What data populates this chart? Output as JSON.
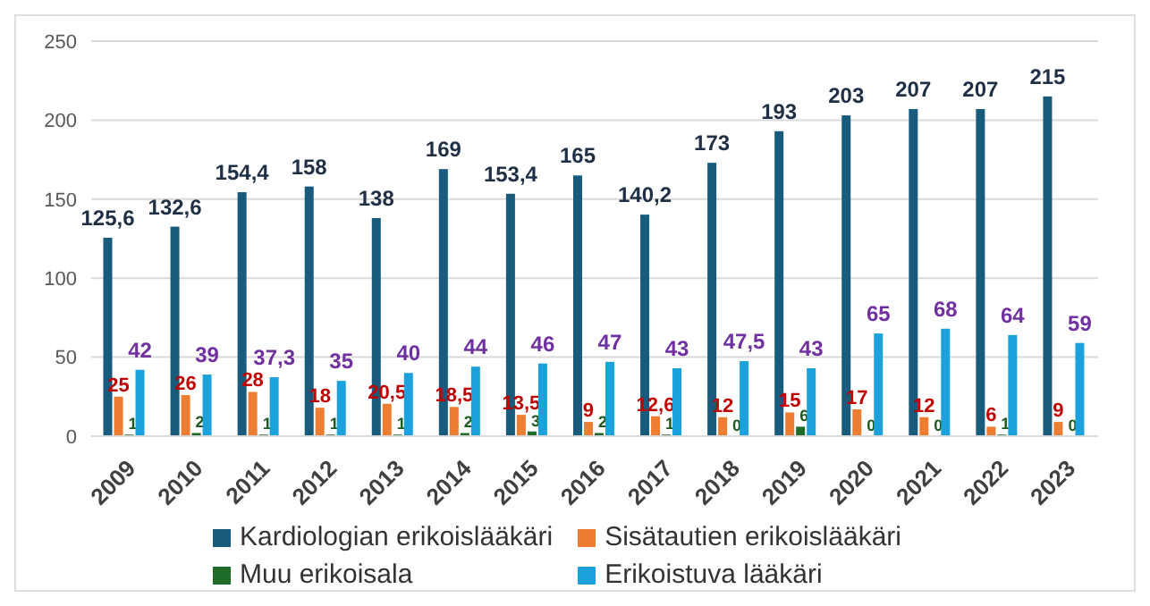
{
  "chart_data": {
    "type": "bar",
    "categories": [
      "2009",
      "2010",
      "2011",
      "2012",
      "2013",
      "2014",
      "2015",
      "2016",
      "2017",
      "2018",
      "2019",
      "2020",
      "2021",
      "2022",
      "2023"
    ],
    "series": [
      {
        "name": "Kardiologian erikoislääkäri",
        "color": "#185b7c",
        "values": [
          125.6,
          132.6,
          154.4,
          158,
          138,
          169,
          153.4,
          165,
          140.2,
          173,
          193,
          203,
          207,
          207,
          215
        ],
        "value_labels": [
          "125,6",
          "132,6",
          "154,4",
          "158",
          "138",
          "169",
          "153,4",
          "165",
          "140,2",
          "173",
          "193",
          "203",
          "207",
          "207",
          "215"
        ]
      },
      {
        "name": "Sisätautien erikoislääkäri",
        "color": "#ed7d31",
        "values": [
          25,
          26,
          28,
          18,
          20.5,
          18.5,
          13.5,
          9,
          12.6,
          12,
          15,
          17,
          12,
          6,
          9
        ],
        "value_labels": [
          "25",
          "26",
          "28",
          "18",
          "20,5",
          "18,5",
          "13,5",
          "9",
          "12,6",
          "12",
          "15",
          "17",
          "12",
          "6",
          "9"
        ]
      },
      {
        "name": "Muu erikoisala",
        "color": "#1e6b2a",
        "values": [
          1,
          2,
          1,
          1,
          1,
          2,
          3,
          2,
          1,
          0,
          6,
          0,
          0,
          1,
          0
        ],
        "value_labels": [
          "1",
          "2",
          "1",
          "1",
          "1",
          "2",
          "3",
          "2",
          "1",
          "0",
          "6",
          "0",
          "0",
          "1",
          "0"
        ]
      },
      {
        "name": "Erikoistuva lääkäri",
        "color": "#1ba1dc",
        "values": [
          42,
          39,
          37.3,
          35,
          40,
          44,
          46,
          47,
          43,
          47.5,
          43,
          65,
          68,
          64,
          59
        ],
        "value_labels": [
          "42",
          "39",
          "37,3",
          "35",
          "40",
          "44",
          "46",
          "47",
          "43",
          "47,5",
          "43",
          "65",
          "68",
          "64",
          "59"
        ]
      }
    ],
    "ylim": [
      0,
      250
    ],
    "yticks": [
      0,
      50,
      100,
      150,
      200,
      250
    ],
    "grid": "y",
    "legend": "bottom"
  }
}
